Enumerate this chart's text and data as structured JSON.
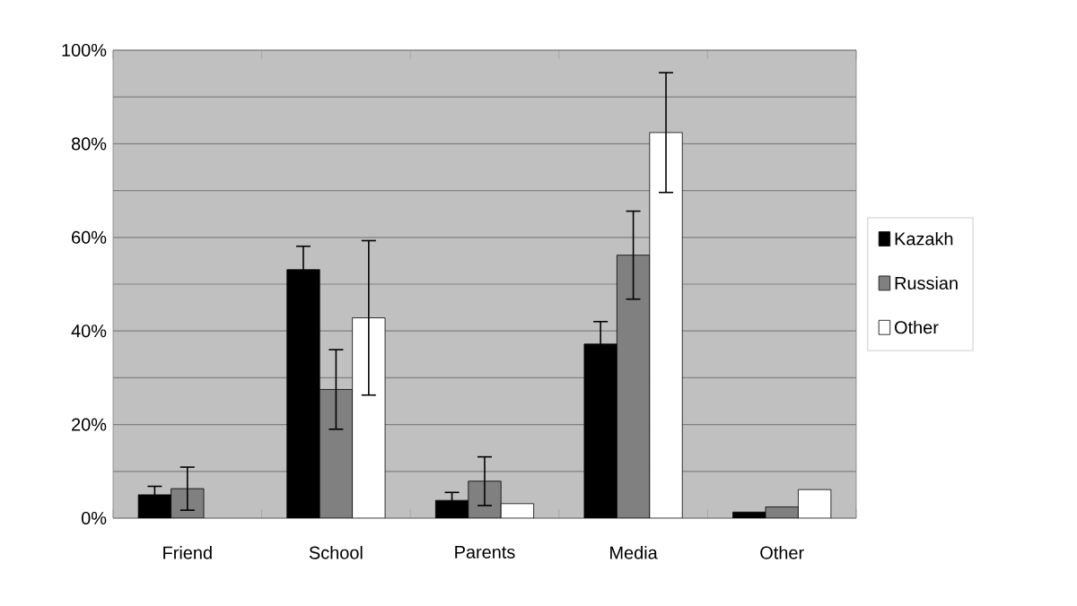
{
  "chart_data": {
    "type": "bar",
    "categories": [
      "Friend",
      "School",
      "Parents",
      "Media",
      "Other"
    ],
    "series": [
      {
        "name": "Kazakh",
        "color": "#000000",
        "values": [
          5.0,
          53.1,
          3.8,
          37.2,
          1.3
        ],
        "errors": [
          1.8,
          5.0,
          1.7,
          4.8,
          null
        ]
      },
      {
        "name": "Russian",
        "color": "#808080",
        "values": [
          6.3,
          27.5,
          7.9,
          56.2,
          2.4
        ],
        "errors": [
          4.6,
          8.5,
          5.2,
          9.4,
          null
        ]
      },
      {
        "name": "Other",
        "color": "#ffffff",
        "values": [
          null,
          42.8,
          3.1,
          82.4,
          6.1
        ],
        "errors": [
          null,
          16.5,
          null,
          12.8,
          null
        ]
      }
    ],
    "ylim": [
      0,
      100
    ],
    "yticks": [
      {
        "value": 0,
        "label": "0%"
      },
      {
        "value": 10,
        "label": null
      },
      {
        "value": 20,
        "label": "20%"
      },
      {
        "value": 30,
        "label": null
      },
      {
        "value": 40,
        "label": "40%"
      },
      {
        "value": 50,
        "label": null
      },
      {
        "value": 60,
        "label": "60%"
      },
      {
        "value": 70,
        "label": null
      },
      {
        "value": 80,
        "label": "80%"
      },
      {
        "value": 90,
        "label": null
      },
      {
        "value": 100,
        "label": "100%"
      }
    ],
    "grid": "y",
    "legend": "right"
  }
}
